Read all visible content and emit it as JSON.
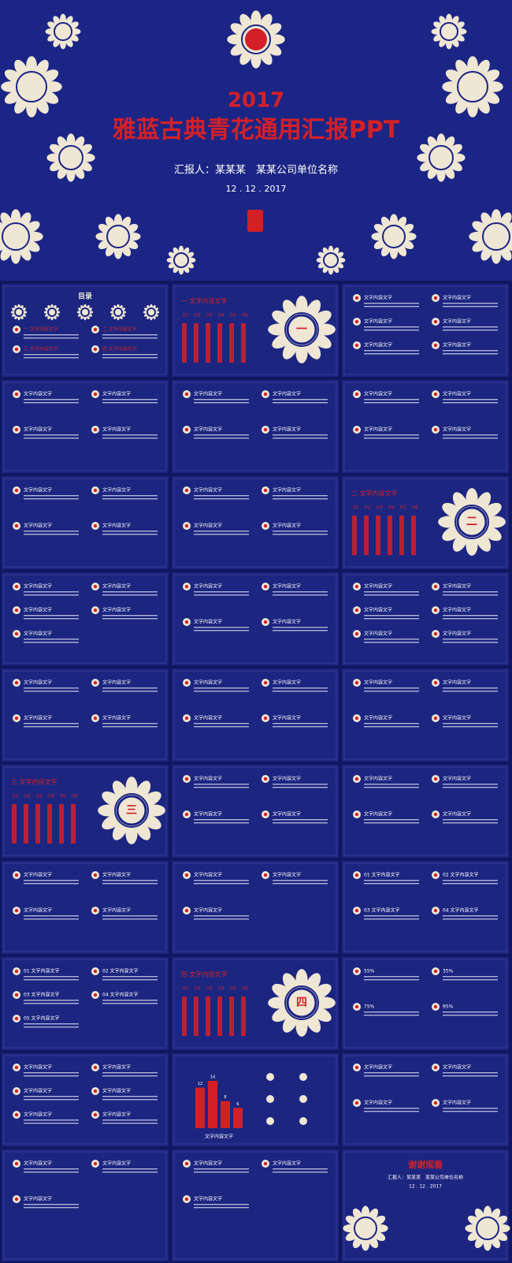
{
  "header": {
    "year": "2017",
    "title": "雅蓝古典青花通用汇报PPT",
    "reporter": "汇报人：某某某　某某公司单位名称",
    "date": "12 . 12 . 2017"
  },
  "slides": [
    {
      "title": "目录",
      "items": [
        "一 文字内容文字",
        "二 文字内容文字",
        "三 文字内容文字",
        "四 文字内容文字"
      ]
    },
    {
      "numeral": "一",
      "title": "一 文字内容文字",
      "items": [
        "01",
        "02",
        "03",
        "04",
        "05",
        "06"
      ]
    },
    {
      "items": [
        "文字内容文字",
        "文字内容文字",
        "文字内容文字",
        "文字内容文字",
        "文字内容文字",
        "文字内容文字"
      ]
    },
    {
      "items": [
        "文字内容文字",
        "文字内容文字",
        "文字内容文字",
        "文字内容文字"
      ]
    },
    {
      "items": [
        "文字内容文字",
        "文字内容文字",
        "文字内容文字",
        "文字内容文字"
      ]
    },
    {
      "items": [
        "文字内容文字",
        "文字内容文字",
        "文字内容文字",
        "文字内容文字"
      ]
    },
    {
      "items": [
        "文字内容文字",
        "文字内容文字",
        "文字内容文字",
        "文字内容文字"
      ]
    },
    {
      "items": [
        "文字内容文字",
        "文字内容文字",
        "文字内容文字",
        "文字内容文字"
      ]
    },
    {
      "numeral": "二",
      "title": "二 文字内容文字",
      "items": [
        "01",
        "02",
        "03",
        "04",
        "05",
        "06"
      ]
    },
    {
      "items": [
        "文字内容文字",
        "文字内容文字",
        "文字内容文字",
        "文字内容文字",
        "文字内容文字"
      ]
    },
    {
      "items": [
        "文字内容文字",
        "文字内容文字",
        "文字内容文字",
        "文字内容文字"
      ]
    },
    {
      "items": [
        "文字内容文字",
        "文字内容文字",
        "文字内容文字",
        "文字内容文字",
        "文字内容文字",
        "文字内容文字"
      ]
    },
    {
      "items": [
        "文字内容文字",
        "文字内容文字",
        "文字内容文字",
        "文字内容文字"
      ]
    },
    {
      "items": [
        "文字内容文字",
        "文字内容文字",
        "文字内容文字",
        "文字内容文字"
      ]
    },
    {
      "items": [
        "文字内容文字",
        "文字内容文字",
        "文字内容文字",
        "文字内容文字"
      ]
    },
    {
      "numeral": "三",
      "title": "三 文字内容文字",
      "items": [
        "01",
        "02",
        "03",
        "04",
        "05",
        "06"
      ]
    },
    {
      "items": [
        "文字内容文字",
        "文字内容文字",
        "文字内容文字",
        "文字内容文字"
      ]
    },
    {
      "items": [
        "文字内容文字",
        "文字内容文字",
        "文字内容文字",
        "文字内容文字"
      ]
    },
    {
      "items": [
        "文字内容文字",
        "文字内容文字",
        "文字内容文字",
        "文字内容文字"
      ]
    },
    {
      "items": [
        "文字内容文字",
        "文字内容文字",
        "文字内容文字"
      ]
    },
    {
      "items": [
        "01 文字内容文字",
        "02 文字内容文字",
        "03 文字内容文字",
        "04 文字内容文字"
      ]
    },
    {
      "items": [
        "01 文字内容文字",
        "02 文字内容文字",
        "03 文字内容文字",
        "04 文字内容文字",
        "05 文字内容文字"
      ]
    },
    {
      "numeral": "四",
      "title": "四 文字内容文字",
      "items": [
        "01",
        "02",
        "03",
        "04",
        "05",
        "06"
      ]
    },
    {
      "items": [
        "55%",
        "35%",
        "75%",
        "95%"
      ]
    },
    {
      "items": [
        "文字内容文字",
        "文字内容文字",
        "文字内容文字",
        "文字内容文字",
        "文字内容文字",
        "文字内容文字"
      ]
    },
    {
      "title": "文字内容文字",
      "bars": [
        12,
        14,
        8,
        6
      ]
    },
    {
      "items": [
        "文字内容文字",
        "文字内容文字",
        "文字内容文字",
        "文字内容文字"
      ]
    },
    {
      "items": [
        "文字内容文字",
        "文字内容文字",
        "文字内容文字"
      ]
    },
    {
      "items": [
        "文字内容文字",
        "文字内容文字",
        "文字内容文字"
      ]
    },
    {
      "title": "谢谢观看",
      "items": [
        "汇报人：某某某　某某公司单位名称",
        "12 . 12 . 2017"
      ]
    }
  ]
}
